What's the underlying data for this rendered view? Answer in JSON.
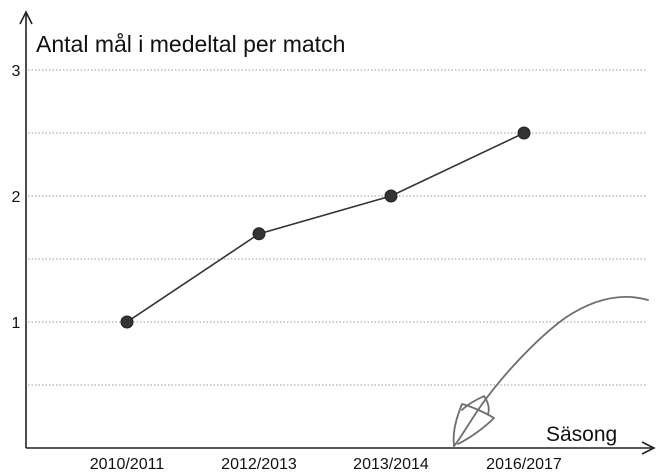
{
  "chart_data": {
    "type": "line",
    "title": "Antal mål i medeltal per match",
    "xlabel": "Säsong",
    "ylabel": "",
    "categories": [
      "2010/2011",
      "2012/2013",
      "2013/2014",
      "2016/2017"
    ],
    "series": [
      {
        "values": [
          1.0,
          1.7,
          2.0,
          2.5
        ]
      }
    ],
    "ylim": [
      0,
      3
    ],
    "yticks": [
      1,
      2,
      3
    ],
    "ygrid_step": 0.5,
    "grid": true,
    "legend": "none",
    "colors": {
      "line": "#333333",
      "grid": "#9a9a9a",
      "annotation": "#6e6e6e"
    }
  },
  "annotation": {
    "description-icon": "handwritten-arrow-icon"
  }
}
